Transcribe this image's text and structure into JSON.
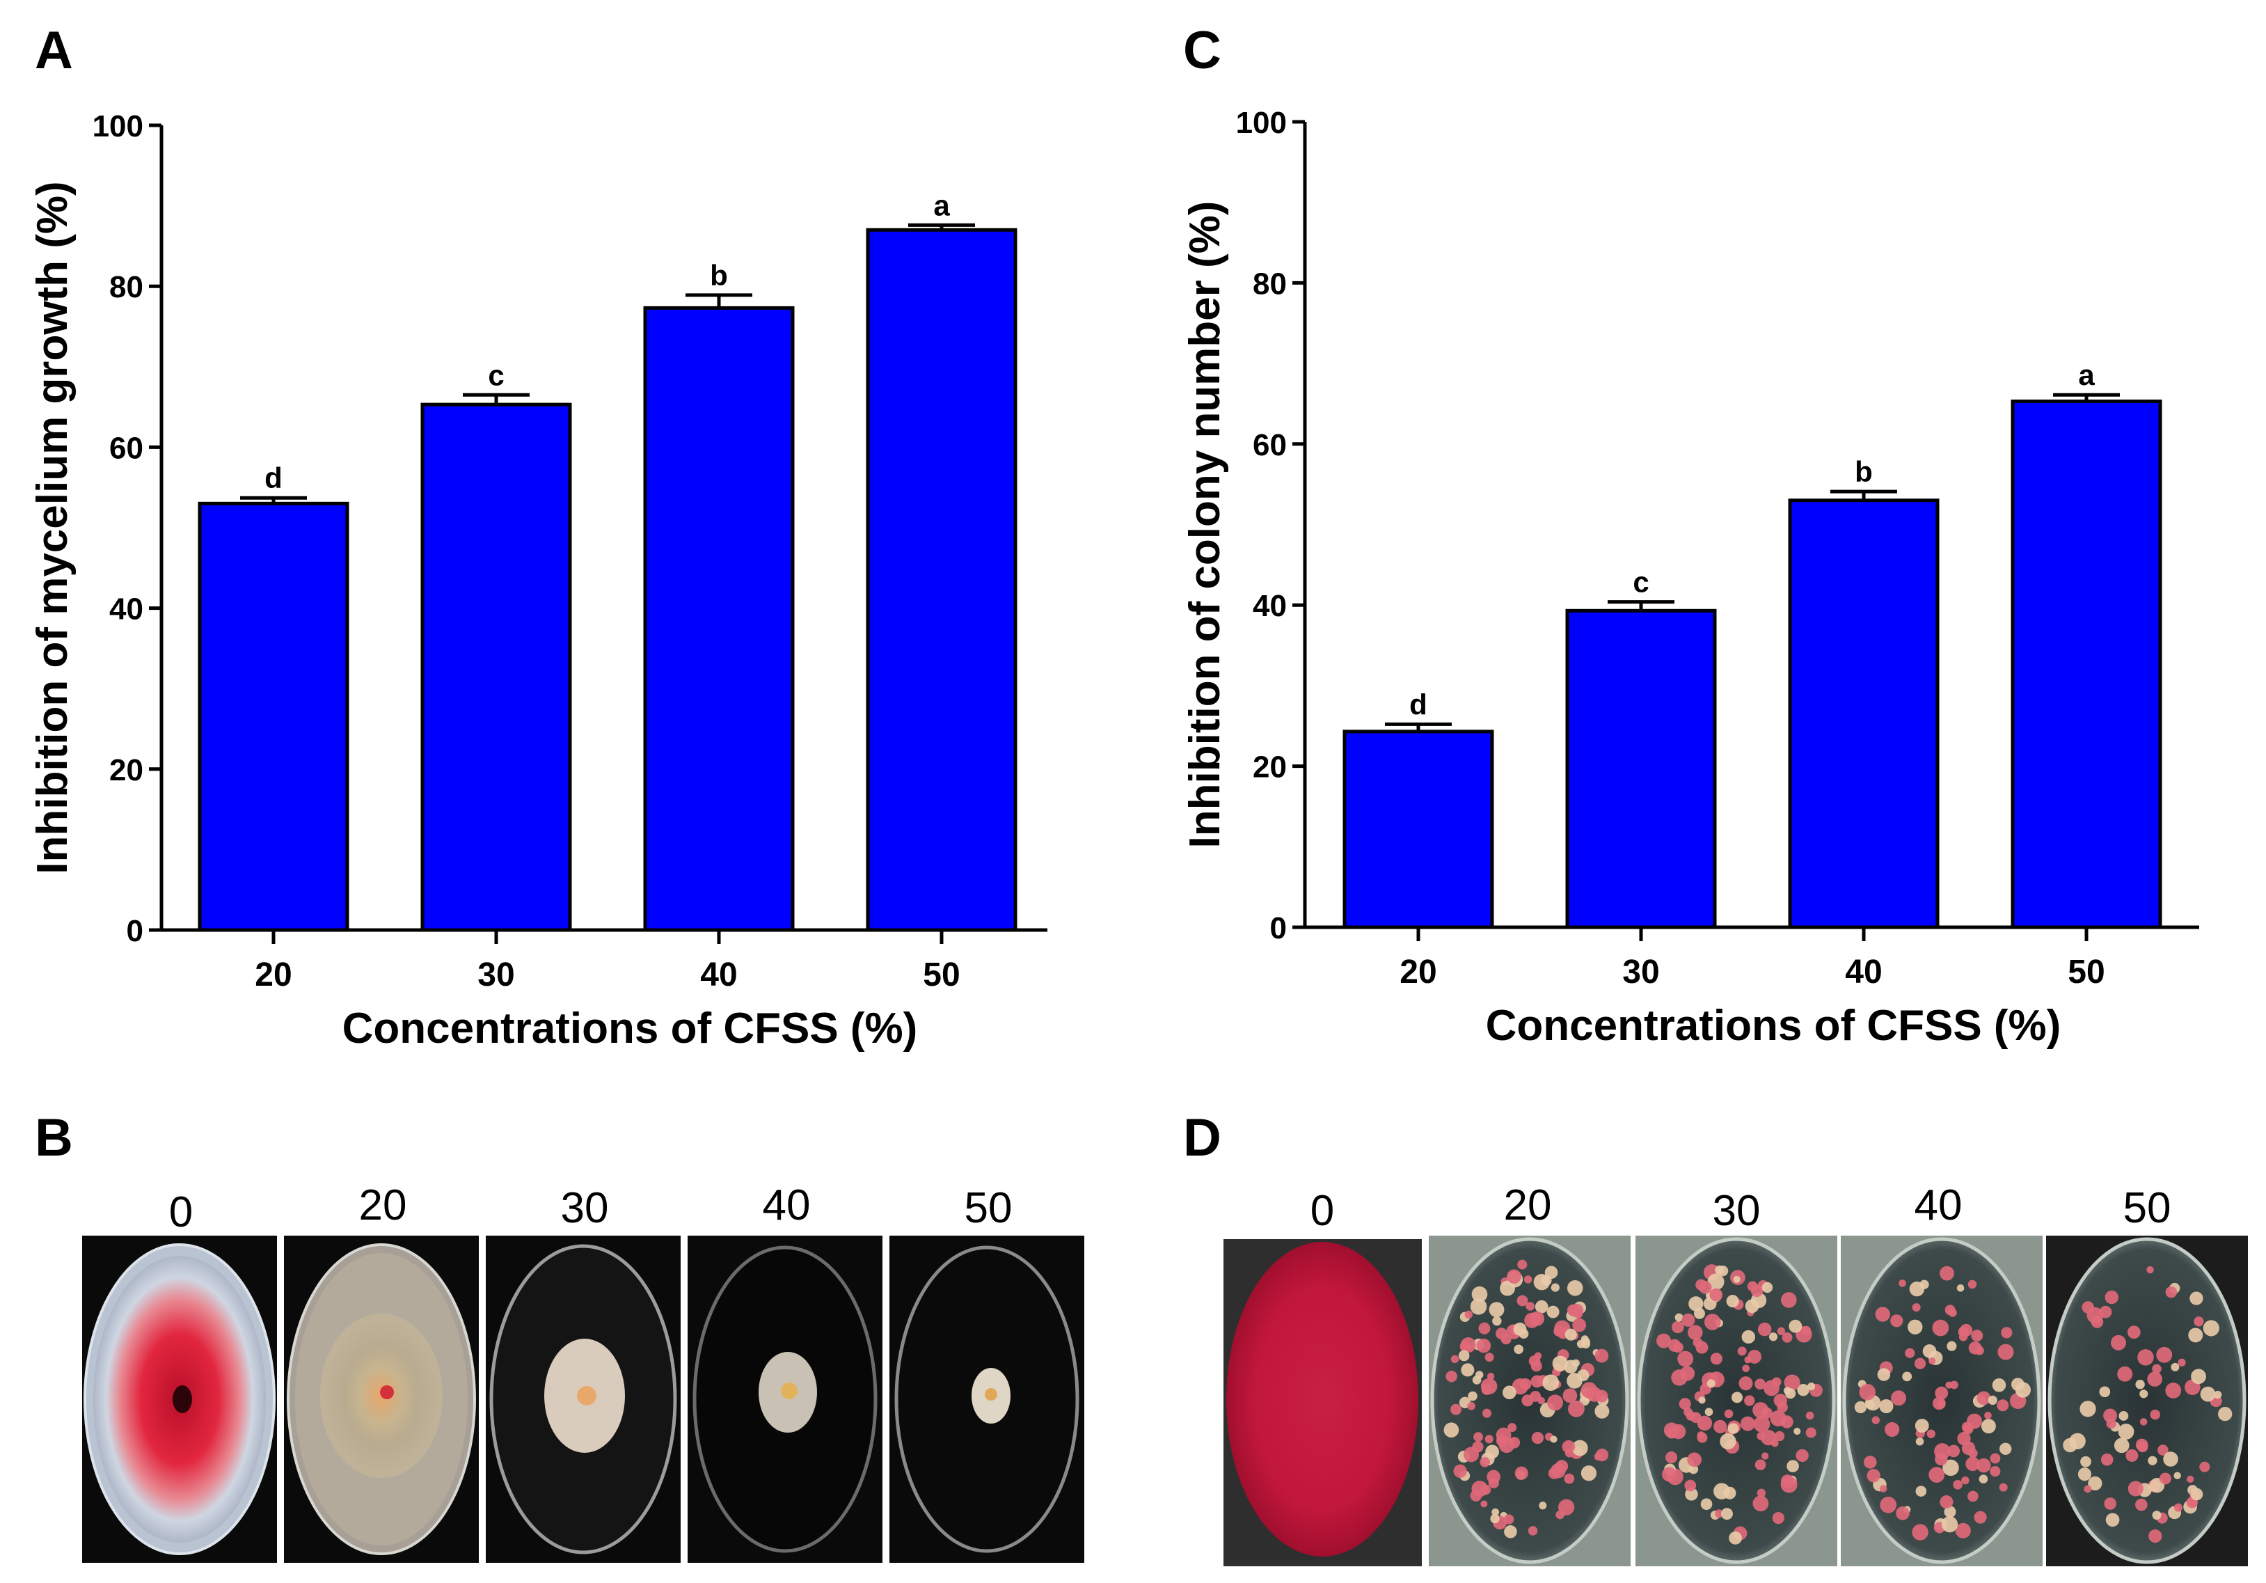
{
  "panels": {
    "A": {
      "letter": "A"
    },
    "B": {
      "letter": "B",
      "plate_labels": [
        "0",
        "20",
        "30",
        "40",
        "50"
      ],
      "description_hidden": true
    },
    "C": {
      "letter": "C"
    },
    "D": {
      "letter": "D",
      "plate_labels": [
        "0",
        "20",
        "30",
        "40",
        "50"
      ]
    }
  },
  "chart_data": [
    {
      "id": "A",
      "type": "bar",
      "categories": [
        "20",
        "30",
        "40",
        "50"
      ],
      "values": [
        53,
        65.3,
        77.3,
        87
      ],
      "errors": [
        0.7,
        1.2,
        1.6,
        0.6
      ],
      "significance": [
        "d",
        "c",
        "b",
        "a"
      ],
      "title": "",
      "xlabel": "Concentrations of CFSS  (%)",
      "ylabel": "Inhibition of mycelium growth (%)",
      "ylim": [
        0,
        100
      ],
      "yticks": [
        "0",
        "20",
        "40",
        "60",
        "80",
        "100"
      ],
      "bar_color": "#0000ff",
      "grid": false
    },
    {
      "id": "C",
      "type": "bar",
      "categories": [
        "20",
        "30",
        "40",
        "50"
      ],
      "values": [
        24.3,
        39.3,
        53,
        65.3
      ],
      "errors": [
        0.9,
        1.1,
        1.1,
        0.8
      ],
      "significance": [
        "d",
        "c",
        "b",
        "a"
      ],
      "title": "",
      "xlabel": "Concentrations of CFSS  (%)",
      "ylabel": "Inhibition of colony number (%)",
      "ylim": [
        0,
        100
      ],
      "yticks": [
        "0",
        "20",
        "40",
        "60",
        "80",
        "100"
      ],
      "bar_color": "#0000ff",
      "grid": false
    }
  ],
  "colors": {
    "bar": "#0000ff",
    "red_pigment": "#d81e3c",
    "colony_pink": "#e0697a",
    "agar_dark": "#2c3a3c"
  }
}
